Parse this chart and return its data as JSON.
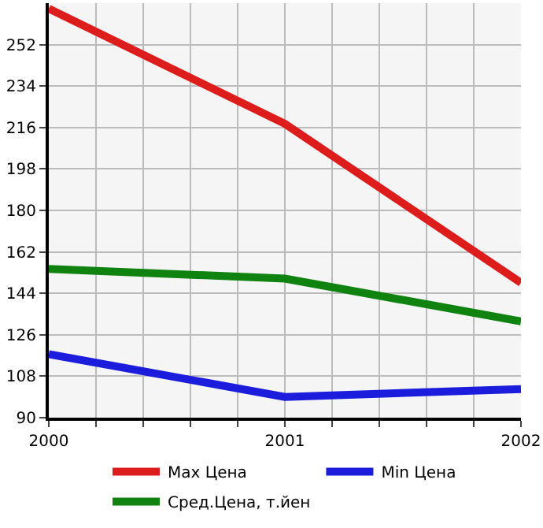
{
  "chart_data": {
    "type": "line",
    "x": [
      2000,
      2001,
      2002
    ],
    "series": [
      {
        "name": "Max Цена",
        "color": "#dd1c1c",
        "values": [
          267.6,
          217.6,
          148.6
        ]
      },
      {
        "name": "Min Цена",
        "color": "#1c1cdd",
        "values": [
          117.6,
          99,
          102.4
        ]
      },
      {
        "name": "Сред.Цена, т.йен",
        "color": "#0f820f",
        "values": [
          154.6,
          150.4,
          131.8
        ]
      }
    ],
    "xlim": [
      2000,
      2002
    ],
    "xticks": [
      2000,
      {
        "value": 2000.2,
        "label": null
      },
      {
        "value": 2000.4,
        "label": null
      },
      {
        "value": 2000.6,
        "label": null
      },
      {
        "value": 2000.8,
        "label": null
      },
      2001,
      {
        "value": 2001.2,
        "label": null
      },
      {
        "value": 2001.4,
        "label": null
      },
      {
        "value": 2001.6,
        "label": null
      },
      {
        "value": 2001.8,
        "label": null
      },
      2002
    ],
    "ylim": [
      90,
      270
    ],
    "yticks": [
      90,
      108,
      126,
      144,
      162,
      180,
      198,
      216,
      234,
      252
    ],
    "grid": true,
    "legend": "bottom",
    "marker": "none",
    "line_style": "solid"
  }
}
